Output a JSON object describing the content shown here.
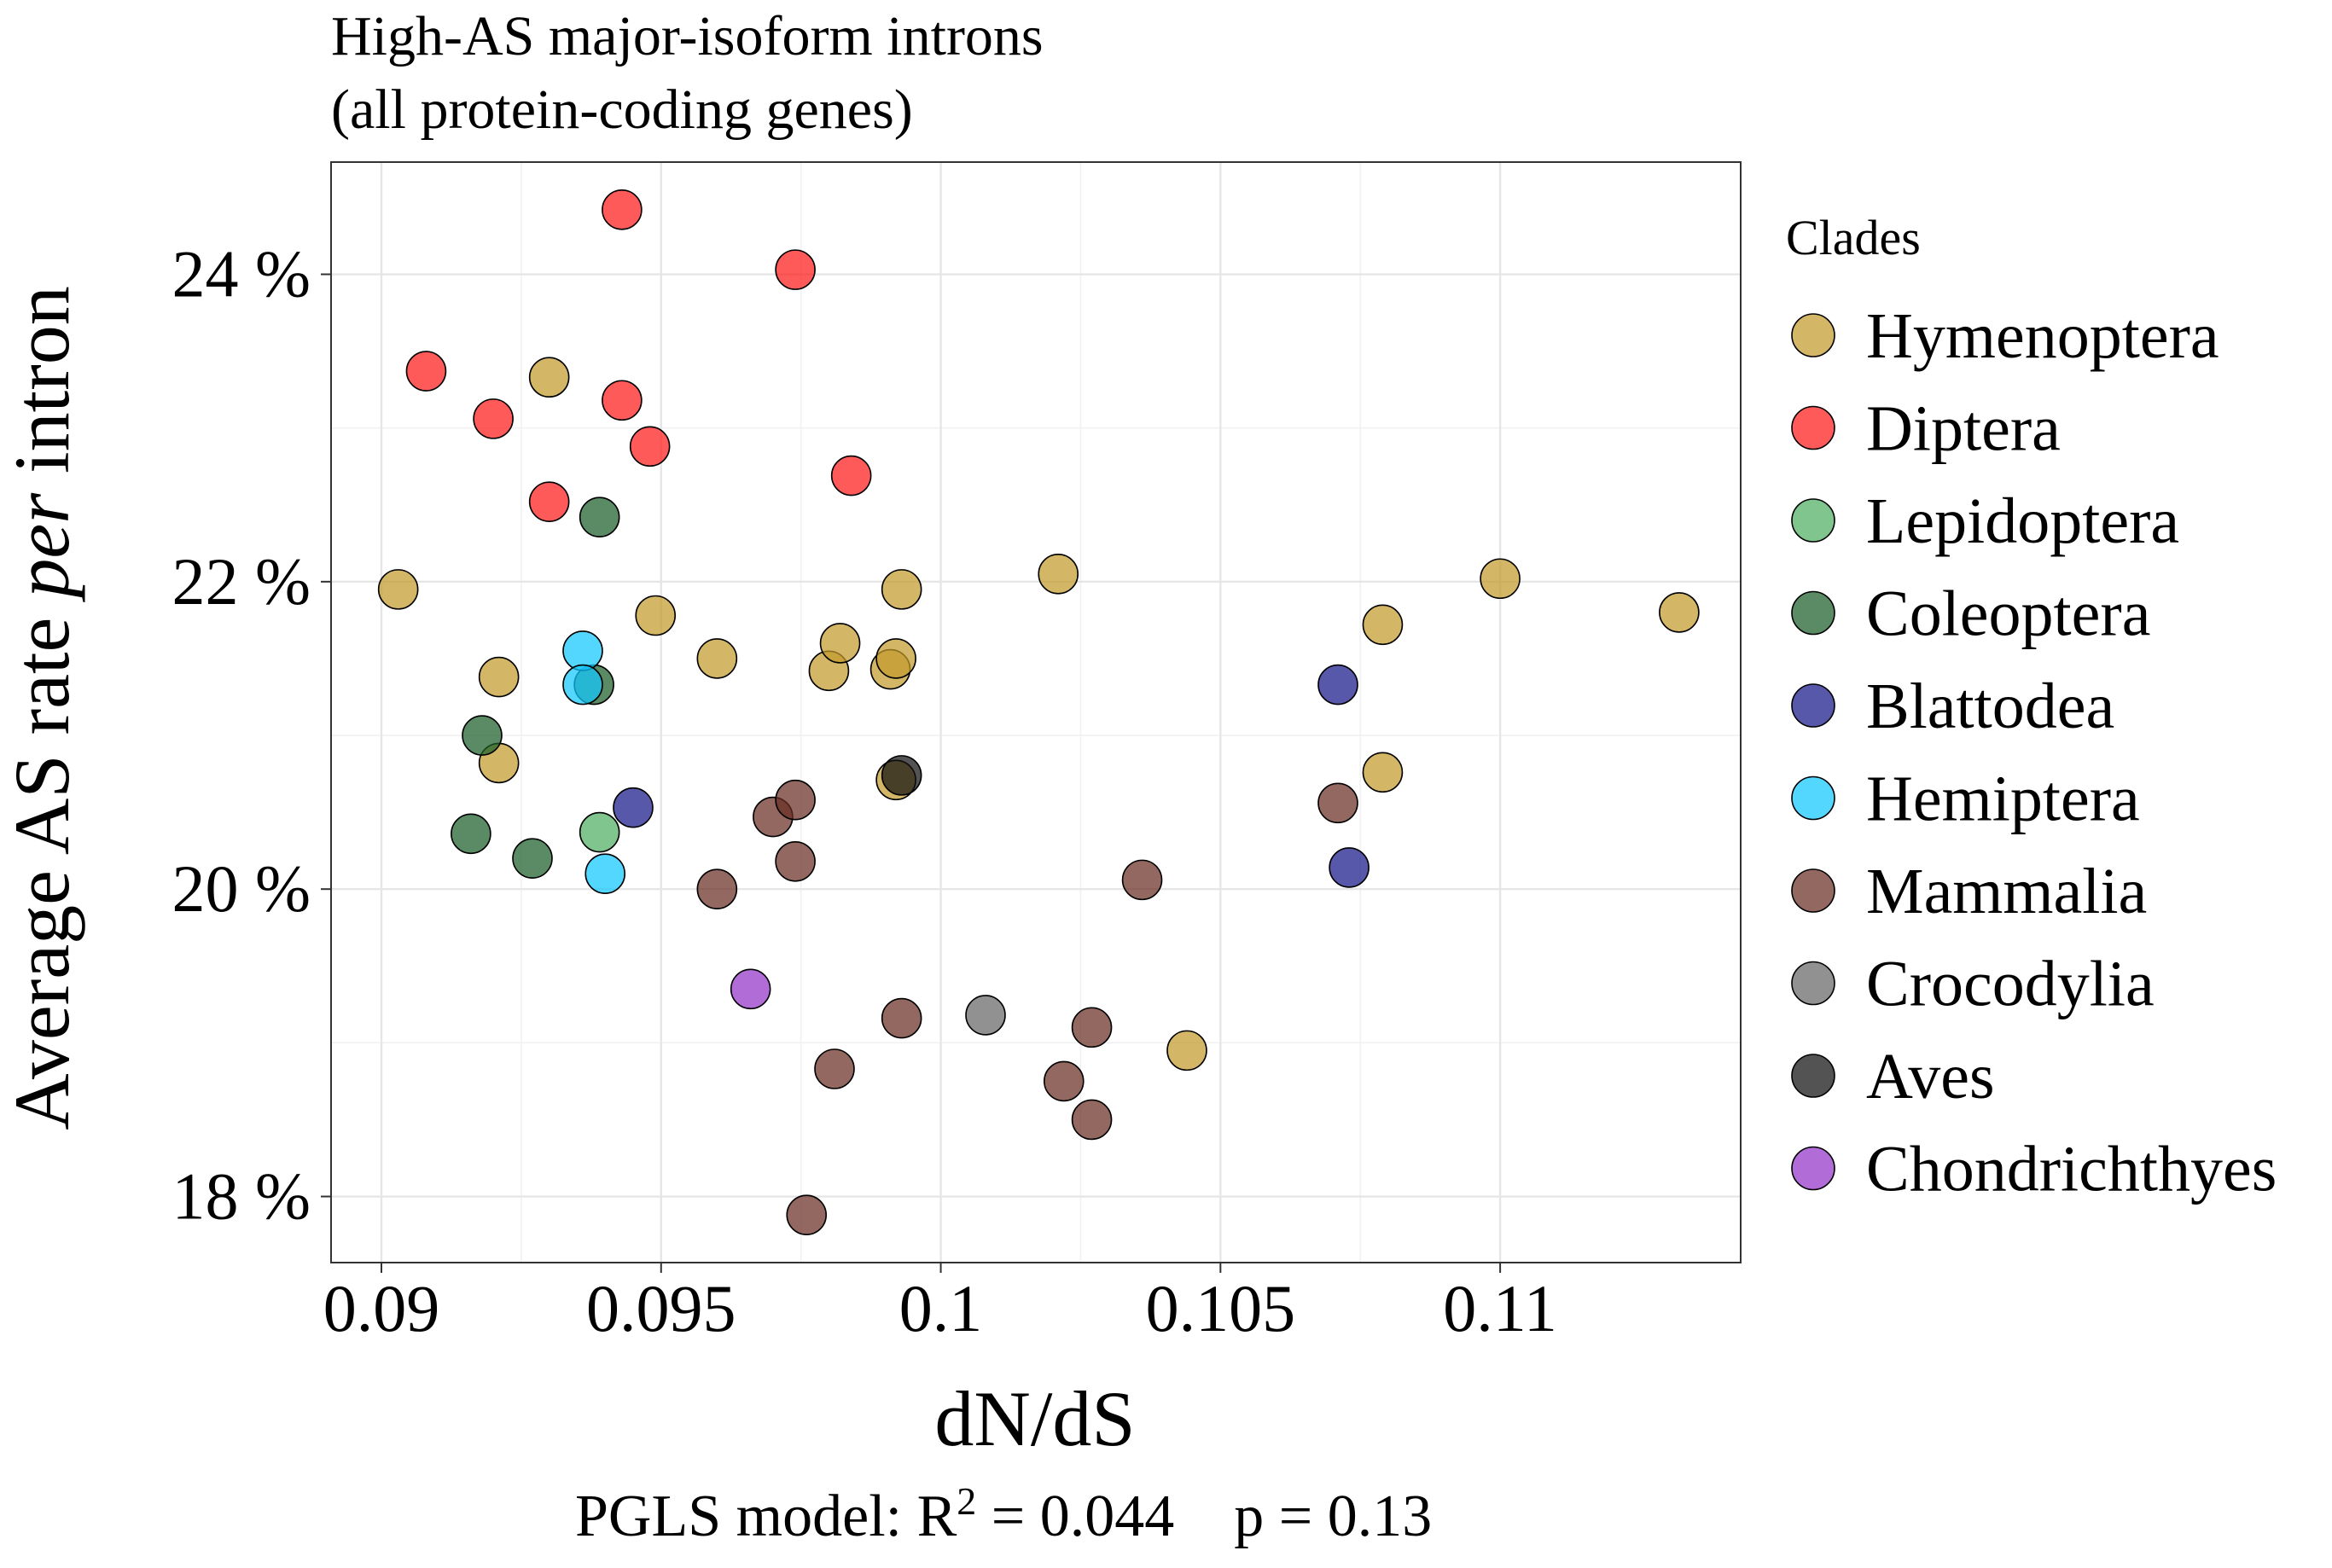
{
  "chart_data": {
    "type": "scatter",
    "title": [
      "High-AS major-isoform introns",
      "(all protein-coding genes)"
    ],
    "xlabel": "dN/dS",
    "ylabel": {
      "before": "Average AS rate ",
      "italic": "per",
      "after": " intron"
    },
    "xlim": [
      0.0891,
      0.1143
    ],
    "ylim": [
      17.57,
      24.73
    ],
    "x_ticks": [
      0.09,
      0.095,
      0.1,
      0.105,
      0.11
    ],
    "x_tick_labels": [
      "0.09",
      "0.095",
      "0.1",
      "0.105",
      "0.11"
    ],
    "y_ticks": [
      18,
      20,
      22,
      24
    ],
    "y_tick_labels": [
      "18 %",
      "20 %",
      "22 %",
      "24 %"
    ],
    "grid": true,
    "legend_title": "Clades",
    "legend_position": "right",
    "series": [
      {
        "name": "Hymenoptera",
        "color": "#C49A2C",
        "points": [
          [
            0.0903,
            21.95
          ],
          [
            0.0921,
            21.38
          ],
          [
            0.0921,
            20.82
          ],
          [
            0.093,
            23.33
          ],
          [
            0.0949,
            21.78
          ],
          [
            0.096,
            21.5
          ],
          [
            0.098,
            21.42
          ],
          [
            0.0982,
            21.6
          ],
          [
            0.0991,
            21.43
          ],
          [
            0.0992,
            21.5
          ],
          [
            0.0993,
            21.95
          ],
          [
            0.0992,
            20.71
          ],
          [
            0.1021,
            22.05
          ],
          [
            0.1044,
            18.95
          ],
          [
            0.1079,
            21.72
          ],
          [
            0.1079,
            20.76
          ],
          [
            0.11,
            22.02
          ],
          [
            0.1132,
            21.8
          ]
        ]
      },
      {
        "name": "Diptera",
        "color": "#FF1A1A",
        "points": [
          [
            0.0908,
            23.37
          ],
          [
            0.092,
            23.06
          ],
          [
            0.093,
            22.52
          ],
          [
            0.0943,
            24.42
          ],
          [
            0.0943,
            23.18
          ],
          [
            0.0948,
            22.88
          ],
          [
            0.0974,
            24.03
          ],
          [
            0.0984,
            22.69
          ]
        ]
      },
      {
        "name": "Lepidoptera",
        "color": "#4DAE61",
        "points": [
          [
            0.0939,
            20.37
          ]
        ]
      },
      {
        "name": "Coleoptera",
        "color": "#1B5E2A",
        "points": [
          [
            0.0916,
            20.36
          ],
          [
            0.0918,
            21.0
          ],
          [
            0.0927,
            20.2
          ],
          [
            0.0938,
            21.33
          ],
          [
            0.0939,
            22.42
          ]
        ]
      },
      {
        "name": "Blattodea",
        "color": "#17178A",
        "points": [
          [
            0.0945,
            20.53
          ],
          [
            0.1071,
            21.33
          ],
          [
            0.1073,
            20.14
          ]
        ]
      },
      {
        "name": "Hemiptera",
        "color": "#12C8FF",
        "points": [
          [
            0.0936,
            21.55
          ],
          [
            0.0936,
            21.33
          ],
          [
            0.094,
            20.1
          ]
        ]
      },
      {
        "name": "Mammalia",
        "color": "#6A2E24",
        "points": [
          [
            0.096,
            20.0
          ],
          [
            0.097,
            20.47
          ],
          [
            0.0974,
            20.18
          ],
          [
            0.0974,
            20.58
          ],
          [
            0.0976,
            17.88
          ],
          [
            0.0981,
            18.83
          ],
          [
            0.0993,
            19.16
          ],
          [
            0.1022,
            18.75
          ],
          [
            0.1027,
            19.1
          ],
          [
            0.1027,
            18.5
          ],
          [
            0.1036,
            20.06
          ],
          [
            0.1071,
            20.56
          ]
        ]
      },
      {
        "name": "Crocodylia",
        "color": "#666666",
        "points": [
          [
            0.1008,
            19.18
          ]
        ]
      },
      {
        "name": "Aves",
        "color": "#111111",
        "points": [
          [
            0.0993,
            20.74
          ]
        ]
      },
      {
        "name": "Chondrichthyes",
        "color": "#9333C9",
        "points": [
          [
            0.0966,
            19.35
          ]
        ]
      }
    ],
    "annotation": {
      "before": "PGLS model: R",
      "superscript": "2",
      "after": " = 0.044    p = 0.13"
    }
  }
}
